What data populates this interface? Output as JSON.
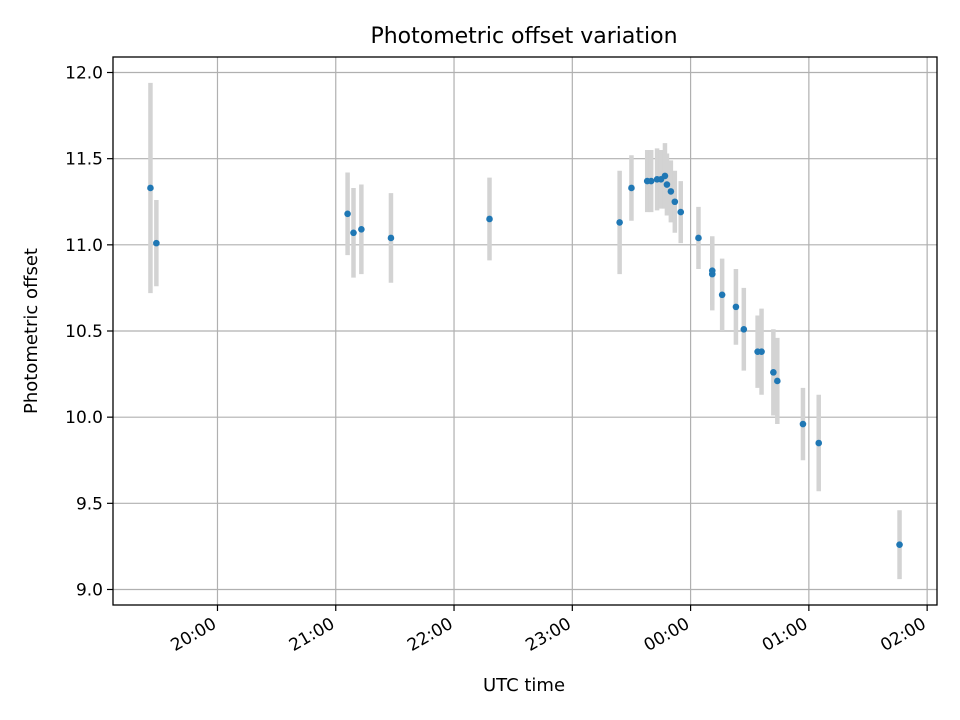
{
  "colors": {
    "points": "#1f77b4",
    "errorbars": "#d3d3d3",
    "grid": "#b0b0b0",
    "axes": "#000000"
  },
  "chart_data": {
    "type": "scatter",
    "title": "Photometric offset variation",
    "xlabel": "UTC time",
    "ylabel": "Photometric offset",
    "grid": true,
    "legend": "none",
    "x_is_time": true,
    "xlim": [
      "19:07",
      "02:05"
    ],
    "ylim": [
      8.91,
      12.09
    ],
    "xticks": [
      "20:00",
      "21:00",
      "22:00",
      "23:00",
      "00:00",
      "01:00",
      "02:00"
    ],
    "yticks": [
      "9.0",
      "9.5",
      "10.0",
      "10.5",
      "11.0",
      "11.5",
      "12.0"
    ],
    "series": [
      {
        "marker": "dot",
        "errorbars": true,
        "points": [
          {
            "x": "19:26",
            "y": 11.33,
            "err": 0.61
          },
          {
            "x": "19:29",
            "y": 11.01,
            "err": 0.25
          },
          {
            "x": "21:06",
            "y": 11.18,
            "err": 0.24
          },
          {
            "x": "21:09",
            "y": 11.07,
            "err": 0.26
          },
          {
            "x": "21:13",
            "y": 11.09,
            "err": 0.26
          },
          {
            "x": "21:28",
            "y": 11.04,
            "err": 0.26
          },
          {
            "x": "22:18",
            "y": 11.15,
            "err": 0.24
          },
          {
            "x": "23:24",
            "y": 11.13,
            "err": 0.3
          },
          {
            "x": "23:30",
            "y": 11.33,
            "err": 0.19
          },
          {
            "x": "23:38",
            "y": 11.37,
            "err": 0.18
          },
          {
            "x": "23:40",
            "y": 11.37,
            "err": 0.18
          },
          {
            "x": "23:43",
            "y": 11.38,
            "err": 0.18
          },
          {
            "x": "23:45",
            "y": 11.38,
            "err": 0.17
          },
          {
            "x": "23:47",
            "y": 11.4,
            "err": 0.19
          },
          {
            "x": "23:48",
            "y": 11.35,
            "err": 0.18
          },
          {
            "x": "23:50",
            "y": 11.31,
            "err": 0.18
          },
          {
            "x": "23:52",
            "y": 11.25,
            "err": 0.18
          },
          {
            "x": "23:55",
            "y": 11.19,
            "err": 0.18
          },
          {
            "x": "00:04",
            "y": 11.04,
            "err": 0.18
          },
          {
            "x": "00:11",
            "y": 10.83,
            "err": 0.21
          },
          {
            "x": "00:11",
            "y": 10.85,
            "err": 0.2
          },
          {
            "x": "00:16",
            "y": 10.71,
            "err": 0.21
          },
          {
            "x": "00:23",
            "y": 10.64,
            "err": 0.22
          },
          {
            "x": "00:27",
            "y": 10.51,
            "err": 0.24
          },
          {
            "x": "00:34",
            "y": 10.38,
            "err": 0.21
          },
          {
            "x": "00:36",
            "y": 10.38,
            "err": 0.25
          },
          {
            "x": "00:42",
            "y": 10.26,
            "err": 0.25
          },
          {
            "x": "00:44",
            "y": 10.21,
            "err": 0.25
          },
          {
            "x": "00:57",
            "y": 9.96,
            "err": 0.21
          },
          {
            "x": "01:05",
            "y": 9.85,
            "err": 0.28
          },
          {
            "x": "01:46",
            "y": 9.26,
            "err": 0.2
          }
        ]
      }
    ]
  }
}
